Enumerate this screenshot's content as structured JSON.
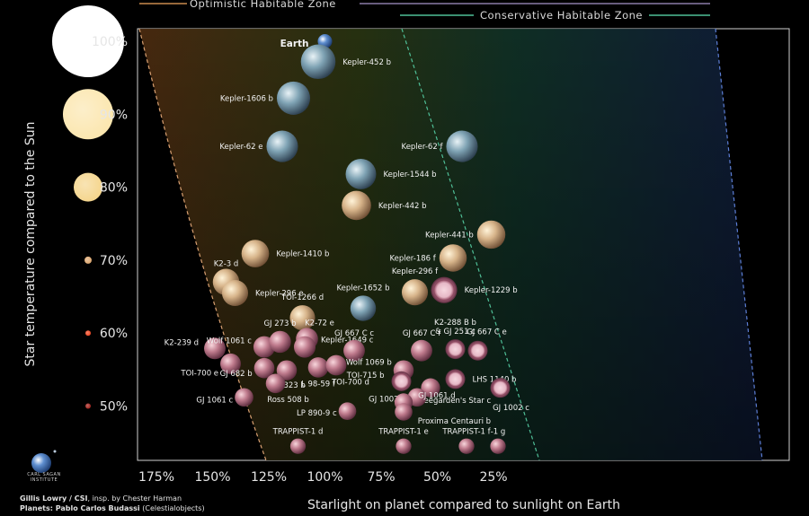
{
  "chart_data": {
    "type": "scatter",
    "xlabel": "Starlight on planet compared to sunlight on Earth",
    "ylabel": "Star temperature compared to the Sun",
    "x_axis": {
      "reversed": true,
      "ticks": [
        175,
        150,
        125,
        100,
        75,
        50,
        25
      ],
      "tick_suffix": "%"
    },
    "y_axis": {
      "ticks": [
        100,
        90,
        80,
        70,
        60,
        50
      ],
      "tick_suffix": "%"
    },
    "legend": [
      {
        "label": "Optimistic Habitable Zone",
        "color": "#c98a4e"
      },
      {
        "label": "Conservative Habitable Zone",
        "color": "#4fbf97"
      }
    ],
    "star_colors": [
      {
        "temp": 100,
        "color": "#ffffff"
      },
      {
        "temp": 90,
        "color": "#fbe6ae"
      },
      {
        "temp": 80,
        "color": "#f5d58b"
      },
      {
        "temp": 70,
        "color": "#dca56c"
      },
      {
        "temp": 60,
        "color": "#f0421c"
      },
      {
        "temp": 50,
        "color": "#9e1c16"
      }
    ],
    "planets": [
      {
        "name": "Earth",
        "x": 100,
        "y": 100,
        "type": "earth"
      },
      {
        "name": "Kepler-452 b",
        "x": 103,
        "y": 97.2,
        "type": "blue"
      },
      {
        "name": "Kepler-1606 b",
        "x": 114,
        "y": 92.2,
        "type": "blue"
      },
      {
        "name": "Kepler-62 e",
        "x": 119,
        "y": 85.6,
        "type": "blue"
      },
      {
        "name": "Kepler-62 f",
        "x": 39,
        "y": 85.6,
        "type": "blue"
      },
      {
        "name": "Kepler-1544 b",
        "x": 84,
        "y": 81.8,
        "type": "blue"
      },
      {
        "name": "Kepler-442 b",
        "x": 86,
        "y": 77.5,
        "type": "tan"
      },
      {
        "name": "Kepler-441 b",
        "x": 26,
        "y": 73.5,
        "type": "tan"
      },
      {
        "name": "Kepler-1410 b",
        "x": 131,
        "y": 70.9,
        "type": "tan"
      },
      {
        "name": "Kepler-186 f",
        "x": 43,
        "y": 70.3,
        "type": "tan"
      },
      {
        "name": "K2-3 d",
        "x": 144,
        "y": 67,
        "type": "tan"
      },
      {
        "name": "Kepler-296 e",
        "x": 140,
        "y": 65.5,
        "type": "tan"
      },
      {
        "name": "Kepler-296 f",
        "x": 60,
        "y": 65.6,
        "type": "tan"
      },
      {
        "name": "Kepler-1229 b",
        "x": 47,
        "y": 65.9,
        "type": "ring"
      },
      {
        "name": "Kepler-1652 b",
        "x": 83,
        "y": 63.4,
        "type": "blue"
      },
      {
        "name": "TOI-1266 d",
        "x": 110,
        "y": 62.1,
        "type": "tan"
      },
      {
        "name": "K2-72 e",
        "x": 108,
        "y": 59.2,
        "type": "pink"
      },
      {
        "name": "K2-239 d",
        "x": 149,
        "y": 57.9,
        "type": "pink"
      },
      {
        "name": "Wolf 1061 c",
        "x": 127,
        "y": 58.1,
        "type": "pink"
      },
      {
        "name": "GJ 273 b",
        "x": 120,
        "y": 58.8,
        "type": "pink"
      },
      {
        "name": "Kepler-1649 c",
        "x": 109,
        "y": 58.1,
        "type": "pink"
      },
      {
        "name": "GJ 667 C c",
        "x": 87,
        "y": 57.6,
        "type": "pink"
      },
      {
        "name": "GJ 667 C f",
        "x": 57,
        "y": 57.6,
        "type": "pink"
      },
      {
        "name": "K2-288 B b & GJ 251 c",
        "x": 42,
        "y": 57.8,
        "type": "ring"
      },
      {
        "name": "GJ 667 C e",
        "x": 32,
        "y": 57.6,
        "type": "ring"
      },
      {
        "name": "TOI-700 e",
        "x": 142,
        "y": 55.8,
        "type": "pink"
      },
      {
        "name": "GJ 682 b",
        "x": 127,
        "y": 55.2,
        "type": "pink"
      },
      {
        "name": "GJ 3323 b",
        "x": 117,
        "y": 54.9,
        "type": "pink"
      },
      {
        "name": "L 98-59 f",
        "x": 103,
        "y": 55.3,
        "type": "pink"
      },
      {
        "name": "TOI-700 d",
        "x": 95,
        "y": 55.6,
        "type": "pink"
      },
      {
        "name": "Wolf 1069 b",
        "x": 65,
        "y": 54.9,
        "type": "pink"
      },
      {
        "name": "TOI-715 b",
        "x": 66,
        "y": 53.4,
        "type": "ring"
      },
      {
        "name": "LHS 1140 b",
        "x": 42,
        "y": 53.7,
        "type": "ring"
      },
      {
        "name": "GJ 1002 c",
        "x": 22,
        "y": 52.5,
        "type": "ring"
      },
      {
        "name": "Ross 508 b",
        "x": 122,
        "y": 53.1,
        "type": "pink"
      },
      {
        "name": "GJ 1061 c",
        "x": 136,
        "y": 51.2,
        "type": "pink"
      },
      {
        "name": "Teegarden's Star c",
        "x": 53,
        "y": 52.5,
        "type": "pink"
      },
      {
        "name": "GJ 1002 b",
        "x": 59,
        "y": 51.2,
        "type": "pink"
      },
      {
        "name": "GJ 1061 d",
        "x": 65,
        "y": 50.5,
        "type": "pink"
      },
      {
        "name": "LP 890-9 c",
        "x": 90,
        "y": 49.3,
        "type": "pink"
      },
      {
        "name": "Proxima Centauri b",
        "x": 65,
        "y": 49.2,
        "type": "pink"
      },
      {
        "name": "TRAPPIST-1 d",
        "x": 112,
        "y": 44.5,
        "type": "pink"
      },
      {
        "name": "TRAPPIST-1 e",
        "x": 65,
        "y": 44.5,
        "type": "pink"
      },
      {
        "name": "TRAPPIST-1 f",
        "x": 37,
        "y": 44.5,
        "type": "pink"
      },
      {
        "name": "-1 g",
        "x": 23,
        "y": 44.5,
        "type": "pink"
      }
    ]
  },
  "credits": {
    "line1_bold": "Gillis Lowry / CSI",
    "line1_rest": ", insp. by Chester Harman",
    "line2_bold": "Planets: Pablo Carlos Budassi",
    "line2_rest": " (Celestialobjects)",
    "logo_text": "CARL SAGAN INSTITUTE",
    "logo_icon": "globe-icon"
  }
}
